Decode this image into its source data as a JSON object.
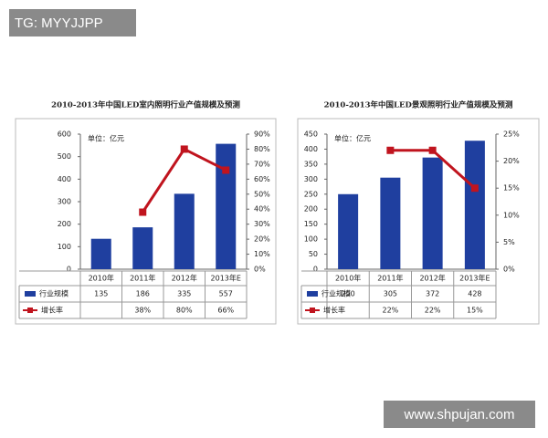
{
  "overlay": {
    "tag": "TG: MYYJJPP",
    "site": "www.shpujan.com"
  },
  "chart_data": [
    {
      "type": "combo",
      "title": "2010-2013年中国LED室内照明行业产值规模及预测",
      "unit_label": "单位：亿元",
      "categories": [
        "2010年",
        "2011年",
        "2012年",
        "2013年E"
      ],
      "series": [
        {
          "name": "行业规模",
          "type": "bar",
          "color": "#1f3f9f",
          "values": [
            135,
            186,
            335,
            557
          ]
        },
        {
          "name": "增长率",
          "type": "line",
          "axis": "y2",
          "color": "#c0141e",
          "values": [
            null,
            38,
            80,
            66
          ],
          "value_labels": [
            null,
            "38%",
            "80%",
            "66%"
          ]
        }
      ],
      "ylim": [
        0,
        600
      ],
      "yticks": [
        0,
        100,
        200,
        300,
        400,
        500,
        600
      ],
      "y2lim": [
        0,
        90
      ],
      "y2ticks": [
        {
          "value": 0,
          "label": "0%"
        },
        {
          "value": 10,
          "label": "10%"
        },
        {
          "value": 20,
          "label": "20%"
        },
        {
          "value": 30,
          "label": "30%"
        },
        {
          "value": 40,
          "label": "40%"
        },
        {
          "value": 50,
          "label": "50%"
        },
        {
          "value": 60,
          "label": "60%"
        },
        {
          "value": 70,
          "label": "70%"
        },
        {
          "value": 80,
          "label": "80%"
        },
        {
          "value": 90,
          "label": "90%"
        }
      ],
      "grid": false
    },
    {
      "type": "combo",
      "title": "2010-2013年中国LED景观照明行业产值规模及预测",
      "unit_label": "单位：亿元",
      "categories": [
        "2010年",
        "2011年",
        "2012年",
        "2013年E"
      ],
      "series": [
        {
          "name": "行业规模",
          "type": "bar",
          "color": "#1f3f9f",
          "values": [
            250,
            305,
            372,
            428
          ]
        },
        {
          "name": "增长率",
          "type": "line",
          "axis": "y2",
          "color": "#c0141e",
          "values": [
            null,
            22,
            22,
            15
          ],
          "value_labels": [
            null,
            "22%",
            "22%",
            "15%"
          ]
        }
      ],
      "ylim": [
        0,
        450
      ],
      "yticks": [
        0,
        50,
        100,
        150,
        200,
        250,
        300,
        350,
        400,
        450
      ],
      "y2lim": [
        0,
        25
      ],
      "y2ticks": [
        {
          "value": 0,
          "label": "0%"
        },
        {
          "value": 5,
          "label": "5%"
        },
        {
          "value": 10,
          "label": "10%"
        },
        {
          "value": 15,
          "label": "15%"
        },
        {
          "value": 20,
          "label": "20%"
        },
        {
          "value": 25,
          "label": "25%"
        }
      ],
      "grid": false
    }
  ]
}
